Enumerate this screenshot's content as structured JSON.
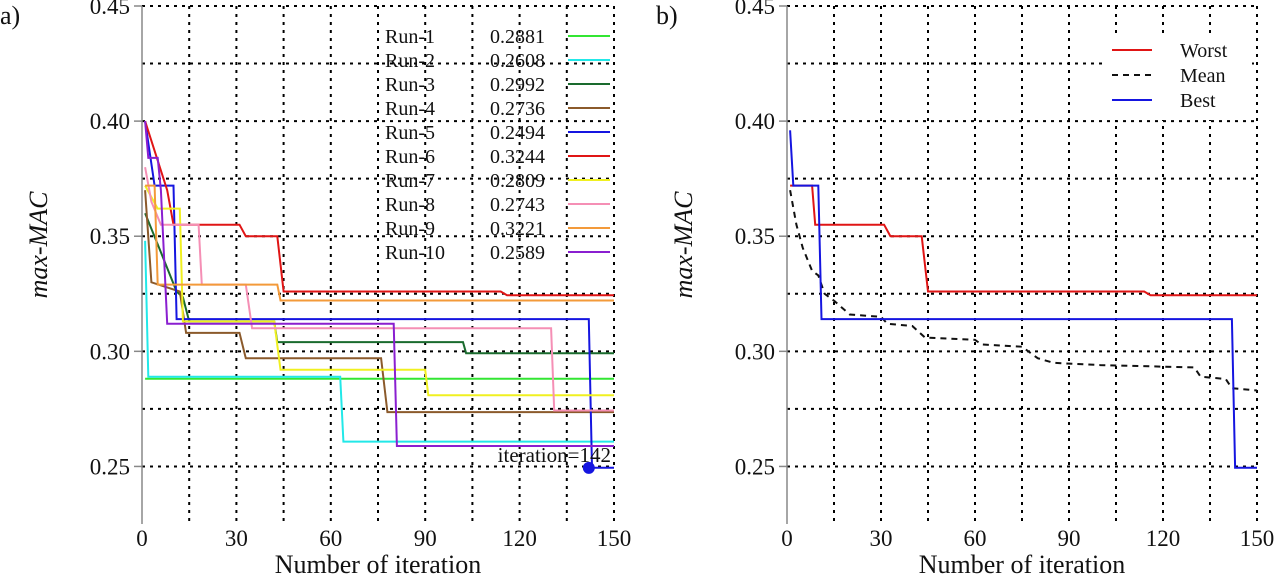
{
  "chart_data": [
    {
      "panel": "a)",
      "type": "line",
      "xlabel": "Number of iteration",
      "ylabel": "max-MAC",
      "xlim": [
        0,
        150
      ],
      "ylim": [
        0.225,
        0.45
      ],
      "xticks": [
        0,
        30,
        60,
        90,
        120,
        150
      ],
      "yticks": [
        0.25,
        0.3,
        0.35,
        0.4,
        0.45
      ],
      "grid": true,
      "legend": "top-right",
      "annotation": "iteration=142",
      "marker": {
        "x": 142,
        "y": 0.2494,
        "color": "#1515e0"
      },
      "series": [
        {
          "name": "Run-1",
          "final": "0.2881",
          "color": "#33e633",
          "points": [
            [
              1,
              0.2881
            ],
            [
              150,
              0.2881
            ]
          ]
        },
        {
          "name": "Run-2",
          "final": "0.2608",
          "color": "#22e8e8",
          "points": [
            [
              1,
              0.348
            ],
            [
              2,
              0.289
            ],
            [
              63,
              0.289
            ],
            [
              64,
              0.2608
            ],
            [
              150,
              0.2608
            ]
          ]
        },
        {
          "name": "Run-3",
          "final": "0.2992",
          "color": "#1a6b2e",
          "points": [
            [
              1,
              0.36
            ],
            [
              6,
              0.343
            ],
            [
              11,
              0.326
            ],
            [
              13,
              0.3235
            ],
            [
              15,
              0.313
            ],
            [
              42,
              0.313
            ],
            [
              43,
              0.304
            ],
            [
              102,
              0.304
            ],
            [
              103,
              0.2992
            ],
            [
              150,
              0.2992
            ]
          ]
        },
        {
          "name": "Run-4",
          "final": "0.2736",
          "color": "#8b5a2b",
          "points": [
            [
              1,
              0.37
            ],
            [
              3,
              0.33
            ],
            [
              12,
              0.326
            ],
            [
              14,
              0.308
            ],
            [
              31,
              0.308
            ],
            [
              33,
              0.297
            ],
            [
              76,
              0.297
            ],
            [
              78,
              0.2736
            ],
            [
              150,
              0.2736
            ]
          ]
        },
        {
          "name": "Run-5",
          "final": "0.2494",
          "color": "#1515e0",
          "points": [
            [
              1,
              0.4
            ],
            [
              4,
              0.372
            ],
            [
              10,
              0.372
            ],
            [
              11,
              0.314
            ],
            [
              142,
              0.314
            ],
            [
              143,
              0.2494
            ],
            [
              150,
              0.2494
            ]
          ]
        },
        {
          "name": "Run-6",
          "final": "0.3244",
          "color": "#e01515",
          "points": [
            [
              1,
              0.4
            ],
            [
              8,
              0.37
            ],
            [
              10,
              0.355
            ],
            [
              31,
              0.355
            ],
            [
              33,
              0.35
            ],
            [
              43,
              0.35
            ],
            [
              45,
              0.326
            ],
            [
              114,
              0.326
            ],
            [
              116,
              0.3244
            ],
            [
              150,
              0.3244
            ]
          ]
        },
        {
          "name": "Run-7",
          "final": "0.2809",
          "color": "#f0f020",
          "points": [
            [
              1,
              0.372
            ],
            [
              5,
              0.362
            ],
            [
              12,
              0.362
            ],
            [
              13,
              0.313
            ],
            [
              42,
              0.313
            ],
            [
              44,
              0.292
            ],
            [
              90,
              0.292
            ],
            [
              91,
              0.2809
            ],
            [
              150,
              0.2809
            ]
          ]
        },
        {
          "name": "Run-8",
          "final": "0.2743",
          "color": "#f58fb5",
          "points": [
            [
              1,
              0.38
            ],
            [
              3,
              0.365
            ],
            [
              6,
              0.355
            ],
            [
              18,
              0.355
            ],
            [
              19,
              0.329
            ],
            [
              33,
              0.329
            ],
            [
              35,
              0.31
            ],
            [
              130,
              0.31
            ],
            [
              131,
              0.2743
            ],
            [
              150,
              0.2743
            ]
          ]
        },
        {
          "name": "Run-9",
          "final": "0.3221",
          "color": "#f39a3a",
          "points": [
            [
              1,
              0.372
            ],
            [
              4,
              0.372
            ],
            [
              5,
              0.329
            ],
            [
              43,
              0.329
            ],
            [
              44,
              0.3221
            ],
            [
              150,
              0.3221
            ]
          ]
        },
        {
          "name": "Run-10",
          "final": "0.2589",
          "color": "#8a1fd0",
          "points": [
            [
              1,
              0.4
            ],
            [
              2,
              0.384
            ],
            [
              5,
              0.384
            ],
            [
              6,
              0.37
            ],
            [
              8,
              0.312
            ],
            [
              80,
              0.312
            ],
            [
              81,
              0.2589
            ],
            [
              150,
              0.2589
            ]
          ]
        }
      ]
    },
    {
      "panel": "b)",
      "type": "line",
      "xlabel": "Number of iteration",
      "ylabel": "max-MAC",
      "xlim": [
        0,
        150
      ],
      "ylim": [
        0.225,
        0.45
      ],
      "xticks": [
        0,
        30,
        60,
        90,
        120,
        150
      ],
      "yticks": [
        0.25,
        0.3,
        0.35,
        0.4,
        0.45
      ],
      "grid": true,
      "legend": "top-right",
      "series": [
        {
          "name": "Worst",
          "color": "#e01515",
          "dash": false,
          "points": [
            [
              1,
              0.372
            ],
            [
              8,
              0.372
            ],
            [
              9,
              0.355
            ],
            [
              31,
              0.355
            ],
            [
              33,
              0.35
            ],
            [
              43,
              0.35
            ],
            [
              45,
              0.326
            ],
            [
              114,
              0.326
            ],
            [
              116,
              0.3244
            ],
            [
              150,
              0.3244
            ]
          ]
        },
        {
          "name": "Mean",
          "color": "#111111",
          "dash": true,
          "points": [
            [
              1,
              0.37
            ],
            [
              3,
              0.355
            ],
            [
              5,
              0.345
            ],
            [
              8,
              0.335
            ],
            [
              10,
              0.333
            ],
            [
              12,
              0.325
            ],
            [
              15,
              0.322
            ],
            [
              20,
              0.316
            ],
            [
              30,
              0.315
            ],
            [
              32,
              0.312
            ],
            [
              40,
              0.311
            ],
            [
              44,
              0.306
            ],
            [
              60,
              0.305
            ],
            [
              62,
              0.303
            ],
            [
              75,
              0.302
            ],
            [
              80,
              0.297
            ],
            [
              85,
              0.295
            ],
            [
              100,
              0.294
            ],
            [
              130,
              0.293
            ],
            [
              132,
              0.289
            ],
            [
              140,
              0.288
            ],
            [
              142,
              0.284
            ],
            [
              150,
              0.283
            ]
          ]
        },
        {
          "name": "Best",
          "color": "#1515e0",
          "dash": false,
          "points": [
            [
              1,
              0.396
            ],
            [
              2,
              0.372
            ],
            [
              10,
              0.372
            ],
            [
              11,
              0.314
            ],
            [
              142,
              0.314
            ],
            [
              143,
              0.2494
            ],
            [
              150,
              0.2494
            ]
          ]
        }
      ]
    }
  ]
}
